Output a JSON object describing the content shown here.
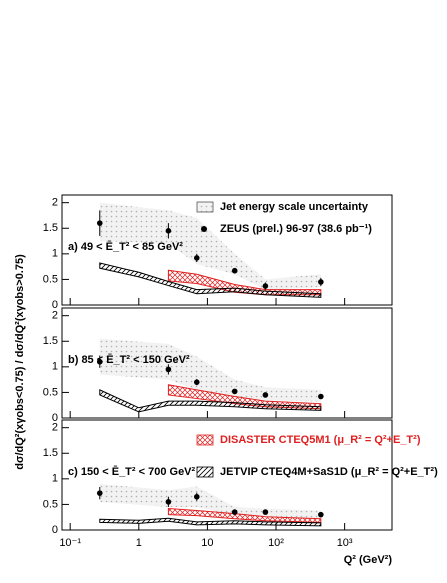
{
  "chart_data": [
    {
      "type": "scatter",
      "label": "a)  49 < Ē_T² < 85 GeV²",
      "ylabel": "dσ/dQ²(xγobs<0.75) / dσ/dQ²(xγobs>0.75)",
      "xlim": [
        0.076,
        4900
      ],
      "xticks": [
        0.1,
        1,
        10,
        100,
        1000
      ],
      "log_x": true,
      "ylim": [
        0,
        2.15
      ],
      "yticks": [
        0,
        0.5,
        1,
        1.5,
        2
      ],
      "series": [
        {
          "kind": "band",
          "name": "Jet energy scale uncertainty",
          "color": "#b0b0b0",
          "x": [
            0.27,
            2.7,
            7,
            25,
            70,
            450
          ],
          "low": [
            1.25,
            1.2,
            0.8,
            0.6,
            0.3,
            0.35
          ],
          "high": [
            2.0,
            1.85,
            1.7,
            1.0,
            0.5,
            0.6
          ]
        },
        {
          "kind": "band",
          "color": "#e02020",
          "x": [
            2.7,
            7,
            25,
            70,
            450
          ],
          "low": [
            0.47,
            0.42,
            0.25,
            0.2,
            0.2
          ],
          "high": [
            0.68,
            0.6,
            0.4,
            0.3,
            0.3
          ]
        },
        {
          "kind": "band",
          "color": "#000000",
          "x": [
            0.27,
            1,
            2.7,
            7,
            25,
            70,
            450
          ],
          "low": [
            0.72,
            0.55,
            0.38,
            0.22,
            0.26,
            0.2,
            0.15
          ],
          "high": [
            0.82,
            0.64,
            0.46,
            0.3,
            0.33,
            0.27,
            0.22
          ]
        },
        {
          "kind": "points",
          "name": "ZEUS (prel.) 96-97 (38.6 pb⁻¹)",
          "color": "#000000",
          "x": [
            0.27,
            2.7,
            7,
            25,
            70,
            450
          ],
          "values": [
            1.6,
            1.45,
            0.92,
            0.67,
            0.37,
            0.45
          ],
          "errors": [
            0.25,
            0.15,
            0.08,
            0.04,
            0.07,
            0.08
          ]
        }
      ]
    },
    {
      "type": "scatter",
      "label": "b)  85 < Ē_T² < 150 GeV²",
      "xlim": [
        0.076,
        4900
      ],
      "xticks": [
        0.1,
        1,
        10,
        100,
        1000
      ],
      "log_x": true,
      "ylim": [
        0,
        2.15
      ],
      "yticks": [
        0,
        0.5,
        1,
        1.5,
        2
      ],
      "series": [
        {
          "kind": "band",
          "color": "#b0b0b0",
          "x": [
            0.27,
            2.7,
            7,
            25,
            70,
            450
          ],
          "low": [
            0.85,
            0.75,
            0.55,
            0.42,
            0.35,
            0.32
          ],
          "high": [
            1.55,
            1.45,
            1.2,
            0.75,
            0.6,
            0.55
          ]
        },
        {
          "kind": "band",
          "color": "#e02020",
          "x": [
            2.7,
            7,
            25,
            70,
            450
          ],
          "low": [
            0.45,
            0.38,
            0.28,
            0.22,
            0.18
          ],
          "high": [
            0.65,
            0.55,
            0.42,
            0.33,
            0.28
          ]
        },
        {
          "kind": "band",
          "color": "#000000",
          "x": [
            0.27,
            1,
            2.7,
            7,
            25,
            70,
            450
          ],
          "low": [
            0.45,
            0.12,
            0.25,
            0.25,
            0.22,
            0.18,
            0.15
          ],
          "high": [
            0.55,
            0.2,
            0.33,
            0.33,
            0.3,
            0.26,
            0.22
          ]
        },
        {
          "kind": "points",
          "color": "#000000",
          "x": [
            0.27,
            2.7,
            7,
            25,
            70,
            450
          ],
          "values": [
            1.1,
            0.95,
            0.7,
            0.52,
            0.45,
            0.42
          ],
          "errors": [
            0.12,
            0.1,
            0.06,
            0.03,
            0.03,
            0.04
          ]
        }
      ]
    },
    {
      "type": "scatter",
      "label": "c)  150 < Ē_T² < 700 GeV²",
      "xlabel": "Q² (GeV²)",
      "xlim": [
        0.076,
        4900
      ],
      "show_xtick_labels": true,
      "log_x": true,
      "xticks": [
        {
          "value": 0.1,
          "label": "10⁻¹"
        },
        1,
        10,
        {
          "value": 100,
          "label": "10²"
        },
        {
          "value": 1000,
          "label": "10³"
        }
      ],
      "ylim": [
        0,
        2.15
      ],
      "yticks": [
        0,
        0.5,
        1,
        1.5,
        2
      ],
      "series": [
        {
          "kind": "band",
          "color": "#b0b0b0",
          "x": [
            0.27,
            2.7,
            7,
            25,
            70,
            450
          ],
          "low": [
            0.55,
            0.45,
            0.45,
            0.28,
            0.27,
            0.22
          ],
          "high": [
            0.9,
            0.78,
            0.85,
            0.45,
            0.42,
            0.38
          ]
        },
        {
          "kind": "band",
          "name": "DISASTER CTEQ5M1 (μ_R² = Q²+E_T²)",
          "color": "#e02020",
          "x": [
            2.7,
            7,
            25,
            70,
            450
          ],
          "low": [
            0.3,
            0.28,
            0.22,
            0.18,
            0.15
          ],
          "high": [
            0.42,
            0.38,
            0.32,
            0.26,
            0.22
          ]
        },
        {
          "kind": "band",
          "name": "JETVIP CTEQ4M+SaS1D (μ_R² = Q²+E_T²)",
          "color": "#000000",
          "x": [
            0.27,
            1,
            2.7,
            7,
            25,
            70,
            450
          ],
          "low": [
            0.15,
            0.13,
            0.17,
            0.1,
            0.12,
            0.1,
            0.08
          ],
          "high": [
            0.21,
            0.19,
            0.23,
            0.16,
            0.18,
            0.16,
            0.14
          ]
        },
        {
          "kind": "points",
          "color": "#000000",
          "x": [
            0.27,
            2.7,
            7,
            25,
            70,
            450
          ],
          "values": [
            0.72,
            0.55,
            0.65,
            0.35,
            0.35,
            0.3
          ],
          "errors": [
            0.12,
            0.1,
            0.08,
            0.03,
            0.05,
            0.04
          ]
        }
      ]
    }
  ]
}
